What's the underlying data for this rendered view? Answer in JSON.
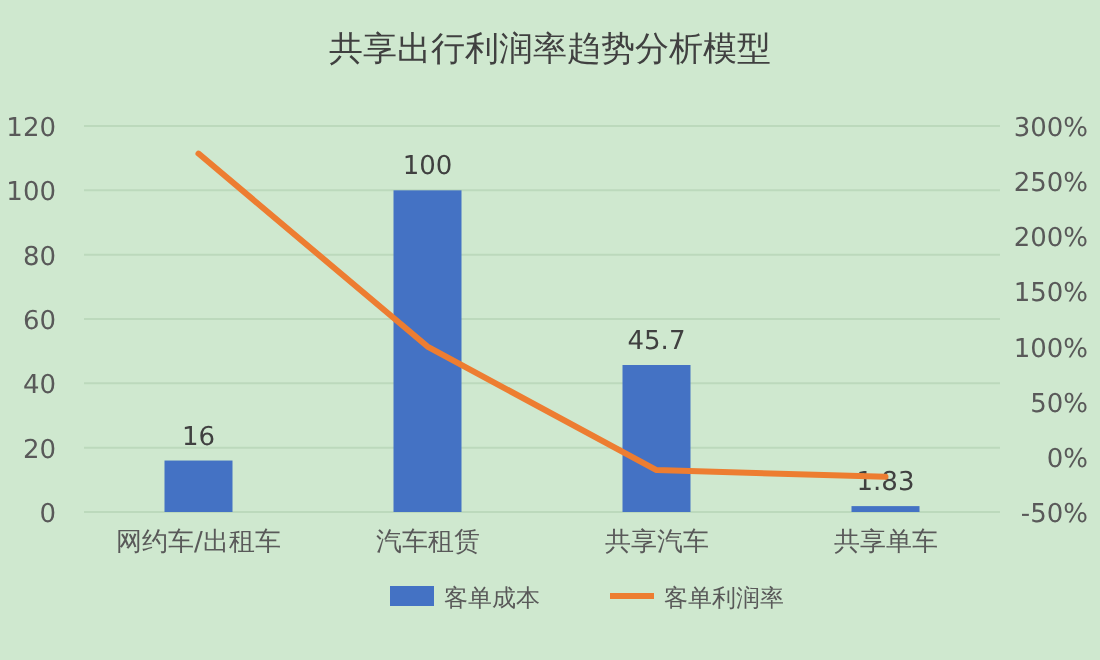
{
  "chart_data": {
    "type": "bar",
    "title": "共享出行利润率趋势分析模型",
    "categories": [
      "网约车/出租车",
      "汽车租赁",
      "共享汽车",
      "共享单车"
    ],
    "series": [
      {
        "name": "客单成本",
        "color": "#4472c4",
        "values": [
          16,
          100,
          45.7,
          1.83
        ],
        "value_labels": [
          "16",
          "100",
          "45.7",
          "1.83"
        ]
      },
      {
        "name": "客单利润率",
        "type": "line",
        "color": "#ed7d31",
        "axis": "y2",
        "values": [
          275,
          100,
          -12,
          -18
        ]
      }
    ],
    "ylim": [
      0,
      120
    ],
    "yticks": [
      0,
      20,
      40,
      60,
      80,
      100,
      120
    ],
    "y2lim": [
      -50,
      300
    ],
    "y2ticks": [
      {
        "value": -50,
        "label": "-50%"
      },
      {
        "value": 0,
        "label": "0%"
      },
      {
        "value": 50,
        "label": "50%"
      },
      {
        "value": 100,
        "label": "100%"
      },
      {
        "value": 150,
        "label": "150%"
      },
      {
        "value": 200,
        "label": "200%"
      },
      {
        "value": 250,
        "label": "250%"
      },
      {
        "value": 300,
        "label": "300%"
      }
    ],
    "grid": "y",
    "legend": "bottom"
  }
}
